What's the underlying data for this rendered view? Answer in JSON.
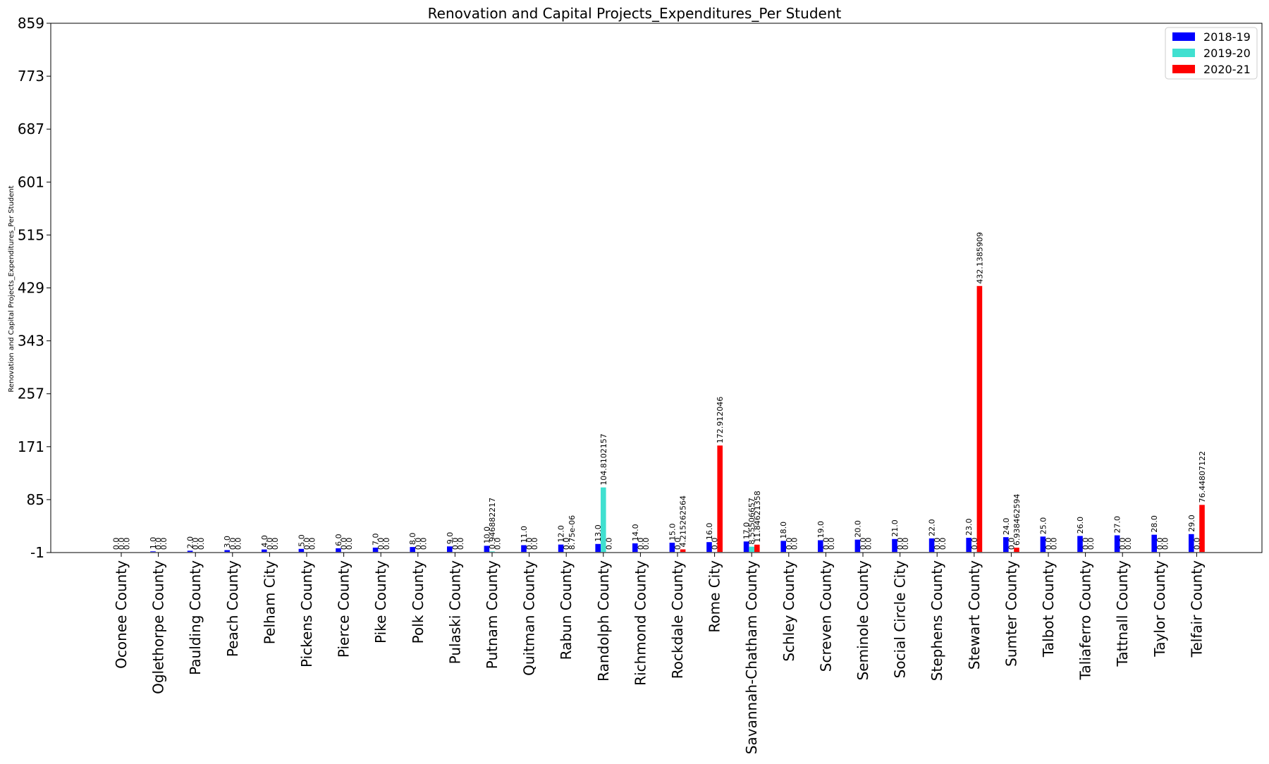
{
  "chart_data": {
    "type": "bar",
    "title": "Renovation and Capital Projects_Expenditures_Per Student",
    "xlabel": "",
    "ylabel": "Renovation and Capital Projects_Expenditures_Per Student",
    "ylim": [
      -1,
      859
    ],
    "yticks": [
      -1,
      85,
      171,
      257,
      343,
      429,
      515,
      601,
      687,
      773,
      859
    ],
    "grid": false,
    "legend_position": "top-right",
    "categories": [
      "Oconee County",
      "Oglethorpe County",
      "Paulding County",
      "Peach County",
      "Pelham City",
      "Pickens County",
      "Pierce County",
      "Pike County",
      "Polk County",
      "Pulaski County",
      "Putnam County",
      "Quitman County",
      "Rabun County",
      "Randolph County",
      "Richmond County",
      "Rockdale County",
      "Rome City",
      "Savannah-Chatham County",
      "Schley County",
      "Screven County",
      "Seminole County",
      "Social Circle City",
      "Stephens County",
      "Stewart County",
      "Sumter County",
      "Talbot County",
      "Taliaferro County",
      "Tattnall County",
      "Taylor County",
      "Telfair County"
    ],
    "series": [
      {
        "name": "2018-19",
        "color": "#0000ff",
        "values": [
          0.0,
          1.0,
          2.0,
          3.0,
          4.0,
          5.0,
          6.0,
          7.0,
          8.0,
          9.0,
          10.0,
          11.0,
          12.0,
          13.0,
          14.0,
          15.0,
          16.0,
          17.0,
          18.0,
          19.0,
          20.0,
          21.0,
          22.0,
          23.0,
          24.0,
          25.0,
          26.0,
          27.0,
          28.0,
          29.0
        ],
        "labels": [
          "0.0",
          "1.0",
          "2.0",
          "3.0",
          "4.0",
          "5.0",
          "6.0",
          "7.0",
          "8.0",
          "9.0",
          "10.0",
          "11.0",
          "12.0",
          "13.0",
          "14.0",
          "15.0",
          "16.0",
          "17.0",
          "18.0",
          "19.0",
          "20.0",
          "21.0",
          "22.0",
          "23.0",
          "24.0",
          "25.0",
          "26.0",
          "27.0",
          "28.0",
          "29.0"
        ]
      },
      {
        "name": "2019-20",
        "color": "#40e0d0",
        "values": [
          0.0,
          0.0,
          0.0,
          0.0,
          0.0,
          0.0,
          0.0,
          0.0,
          0.0,
          0.0,
          0.946882217,
          0.0,
          0.0,
          104.8102157,
          0.0,
          0.0,
          0.0,
          8.55506657,
          0.0,
          0.0,
          0.0,
          0.0,
          0.0,
          0.0,
          0.0,
          0.0,
          0.0,
          0.0,
          0.0,
          0.0
        ],
        "labels": [
          "0.0",
          "0.0",
          "0.0",
          "0.0",
          "0.0",
          "0.0",
          "0.0",
          "0.0",
          "0.0",
          "0.0",
          "0.946882217",
          "0.0",
          "0.0",
          "104.8102157",
          "0.0",
          "0.0",
          "0.0",
          "8.55506657",
          "0.0",
          "0.0",
          "0.0",
          "0.0",
          "0.0",
          "0.0",
          "0.0",
          "0.0",
          "0.0",
          "0.0",
          "0.0",
          "0.0"
        ]
      },
      {
        "name": "2020-21",
        "color": "#ff0000",
        "values": [
          0.0,
          0.0,
          0.0,
          0.0,
          0.0,
          0.0,
          0.0,
          0.0,
          0.0,
          0.0,
          0.0,
          0.0,
          8.75e-06,
          0.0,
          0.0,
          4.215262564,
          172.912046,
          11.84621358,
          0.0,
          0.0,
          0.0,
          0.0,
          0.0,
          432.1385909,
          6.938462594,
          0.0,
          0.0,
          0.0,
          0.0,
          76.44807122
        ],
        "labels": [
          "0.0",
          "0.0",
          "0.0",
          "0.0",
          "0.0",
          "0.0",
          "0.0",
          "0.0",
          "0.0",
          "0.0",
          "0.0",
          "0.0",
          "8.75e-06",
          "0.0",
          "0.0",
          "4.215262564",
          "172.912046",
          "11.84621358",
          "0.0",
          "0.0",
          "0.0",
          "0.0",
          "0.0",
          "432.1385909",
          "6.938462594",
          "0.0",
          "0.0",
          "0.0",
          "0.0",
          "76.44807122"
        ]
      }
    ]
  }
}
